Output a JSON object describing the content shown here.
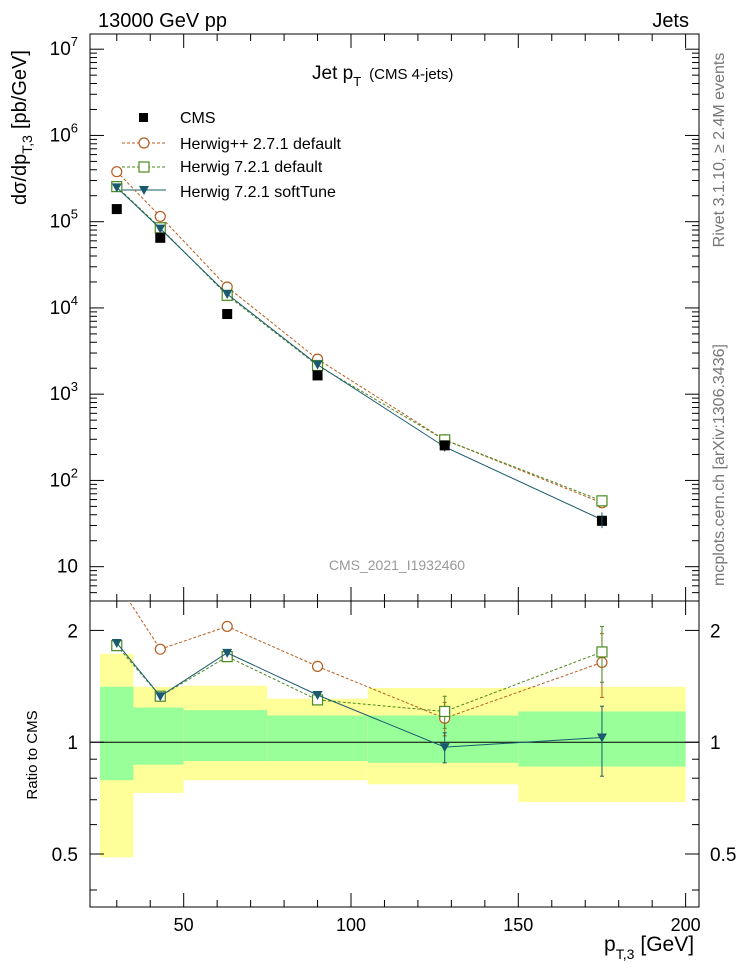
{
  "header": {
    "left": "13000 GeV pp",
    "right": "Jets"
  },
  "side_texts": {
    "rivet": "Rivet 3.1.10, ≥ 2.4M events",
    "mcplots": "mcplots.cern.ch [arXiv:1306.3436]"
  },
  "chart_data": {
    "type": "scatter",
    "title_main": "Jet p",
    "title_sub": "T",
    "title_extra": "(CMS 4-jets)",
    "analysis_id": "CMS_2021_I1932460",
    "upper": {
      "ylabel_main": "dσ/dp",
      "ylabel_sub": "T,3",
      "ylabel_unit": "[pb/GeV]",
      "yscale": "log",
      "ylim": [
        4,
        15000000
      ],
      "yticks": [
        {
          "v": 10,
          "base": "10",
          "exp": ""
        },
        {
          "v": 100,
          "base": "10",
          "exp": "2"
        },
        {
          "v": 1000,
          "base": "10",
          "exp": "3"
        },
        {
          "v": 10000,
          "base": "10",
          "exp": "4"
        },
        {
          "v": 100000,
          "base": "10",
          "exp": "5"
        },
        {
          "v": 1000000,
          "base": "10",
          "exp": "6"
        },
        {
          "v": 10000000,
          "base": "10",
          "exp": "7"
        }
      ],
      "cms": {
        "name": "CMS",
        "x": [
          30,
          43,
          63,
          90,
          128,
          175
        ],
        "y": [
          140000,
          65000,
          8500,
          1650,
          255,
          34
        ],
        "color": "#000000"
      },
      "series": [
        {
          "name": "Herwig++ 2.7.1 default",
          "color": "#b85c1e",
          "marker": "circle",
          "dash": true,
          "x": [
            30,
            43,
            63,
            90,
            128,
            175
          ],
          "y": [
            380000,
            115000,
            17500,
            2550,
            295,
            55
          ]
        },
        {
          "name": "Herwig 7.2.1 default",
          "color": "#4a8a1f",
          "marker": "square",
          "dash": true,
          "x": [
            30,
            43,
            63,
            90,
            128,
            175
          ],
          "y": [
            255000,
            85000,
            14000,
            2150,
            295,
            58
          ]
        },
        {
          "name": "Herwig 7.2.1 softTune",
          "color": "#1a5a6e",
          "marker": "triangle",
          "dash": false,
          "x": [
            30,
            43,
            63,
            90,
            128,
            175
          ],
          "y": [
            250000,
            83000,
            14500,
            2200,
            245,
            35
          ]
        }
      ]
    },
    "ratio": {
      "ylabel": "Ratio to CMS",
      "yscale": "log",
      "ylim": [
        0.36,
        2.4
      ],
      "yticks": [
        {
          "v": 0.5,
          "label": "0.5"
        },
        {
          "v": 1,
          "label": "1"
        },
        {
          "v": 2,
          "label": "2"
        }
      ],
      "bands": [
        {
          "x0": 25,
          "x1": 35,
          "inner": [
            0.79,
            1.41
          ],
          "outer": [
            0.49,
            1.73
          ]
        },
        {
          "x0": 35,
          "x1": 50,
          "inner": [
            0.87,
            1.24
          ],
          "outer": [
            0.73,
            1.41
          ]
        },
        {
          "x0": 50,
          "x1": 75,
          "inner": [
            0.89,
            1.22
          ],
          "outer": [
            0.79,
            1.42
          ]
        },
        {
          "x0": 75,
          "x1": 105,
          "inner": [
            0.89,
            1.18
          ],
          "outer": [
            0.79,
            1.31
          ]
        },
        {
          "x0": 105,
          "x1": 150,
          "inner": [
            0.88,
            1.18
          ],
          "outer": [
            0.77,
            1.4
          ]
        },
        {
          "x0": 150,
          "x1": 200,
          "inner": [
            0.86,
            1.21
          ],
          "outer": [
            0.69,
            1.41
          ]
        }
      ],
      "series": [
        {
          "name": "Herwig++ 2.7.1 default",
          "x": [
            30,
            43,
            63,
            90,
            128,
            175
          ],
          "y": [
            2.7,
            1.78,
            2.05,
            1.6,
            1.16,
            1.64
          ],
          "err": [
            0,
            0,
            0,
            0,
            0.12,
            0.32
          ]
        },
        {
          "name": "Herwig 7.2.1 default",
          "x": [
            30,
            43,
            63,
            90,
            128,
            175
          ],
          "y": [
            1.82,
            1.33,
            1.7,
            1.3,
            1.21,
            1.75
          ],
          "err": [
            0,
            0,
            0,
            0,
            0.12,
            0.3
          ]
        },
        {
          "name": "Herwig 7.2.1 softTune",
          "x": [
            30,
            43,
            63,
            90,
            128,
            175
          ],
          "y": [
            1.85,
            1.33,
            1.74,
            1.34,
            0.97,
            1.03
          ],
          "err": [
            0,
            0,
            0,
            0,
            0.09,
            0.22
          ]
        }
      ]
    },
    "x": {
      "label_main": "p",
      "label_sub": "T,3",
      "label_unit": "[GeV]",
      "xlim": [
        22,
        204
      ],
      "ticks": [
        50,
        100,
        150,
        200
      ]
    }
  }
}
